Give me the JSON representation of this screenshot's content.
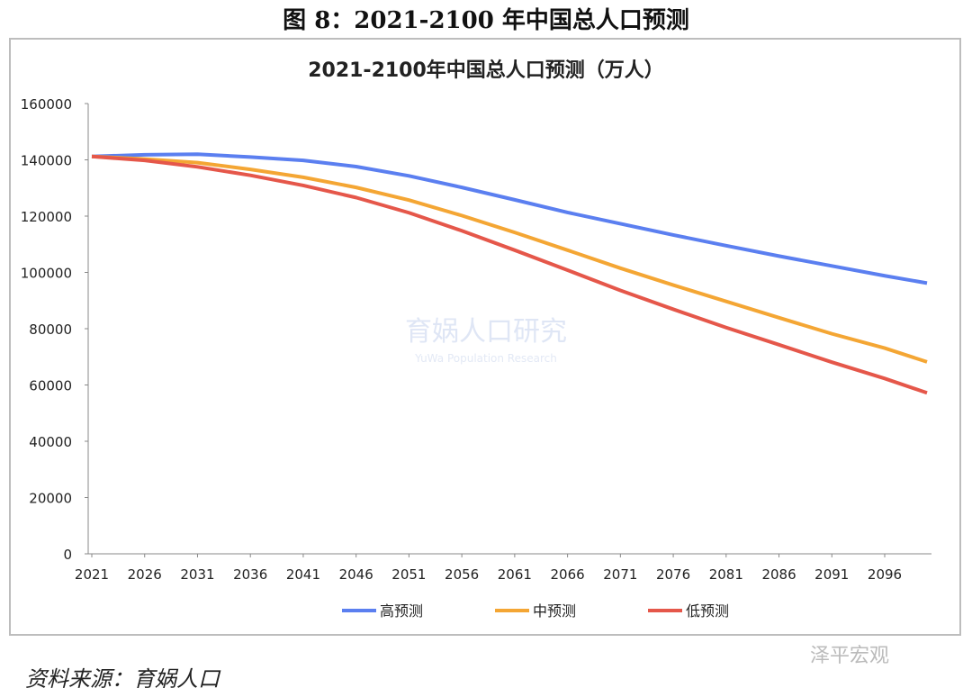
{
  "figure_title": "图 8：2021-2100 年中国总人口预测",
  "source": "资料来源：育娲人口",
  "brand": "泽平宏观",
  "chart_data": {
    "type": "line",
    "title": "2021-2100年中国总人口预测（万人）",
    "xlabel": "",
    "ylabel": "",
    "ylim": [
      0,
      160000
    ],
    "yticks": [
      "0",
      "20000",
      "40000",
      "60000",
      "80000",
      "100000",
      "120000",
      "140000",
      "160000"
    ],
    "xticks": [
      "2021",
      "2026",
      "2031",
      "2036",
      "2041",
      "2046",
      "2051",
      "2056",
      "2061",
      "2066",
      "2071",
      "2076",
      "2081",
      "2086",
      "2091",
      "2096"
    ],
    "x": [
      2021,
      2026,
      2031,
      2036,
      2041,
      2046,
      2051,
      2056,
      2061,
      2066,
      2071,
      2076,
      2081,
      2086,
      2091,
      2096,
      2100
    ],
    "series": [
      {
        "name": "高预测",
        "color": "#5b7ff0",
        "values": [
          141200,
          141800,
          142000,
          141000,
          139800,
          137600,
          134300,
          130200,
          125800,
          121300,
          117300,
          113300,
          109500,
          105800,
          102300,
          98800,
          96200
        ]
      },
      {
        "name": "中预测",
        "color": "#f4a634",
        "values": [
          141200,
          140300,
          139000,
          136600,
          133800,
          130200,
          125700,
          120200,
          114200,
          107900,
          101500,
          95500,
          89700,
          83900,
          78200,
          73100,
          68200
        ]
      },
      {
        "name": "低预测",
        "color": "#e5574a",
        "values": [
          141200,
          139800,
          137500,
          134500,
          130900,
          126600,
          121200,
          114800,
          107900,
          100800,
          93600,
          86900,
          80400,
          74300,
          68100,
          62300,
          57200
        ]
      }
    ],
    "legend": "bottom",
    "grid": false,
    "watermark": [
      "育娲人口研究",
      "YuWa Population Research"
    ]
  }
}
